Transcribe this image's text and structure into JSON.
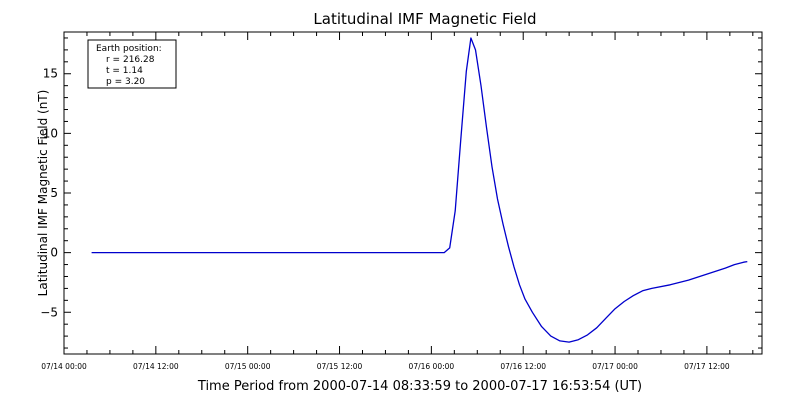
{
  "chart_data": {
    "type": "line",
    "title": "Latitudinal IMF Magnetic Field",
    "xlabel": "Time Period from 2000-07-14 08:33:59 to 2000-07-17 16:53:54 (UT)",
    "ylabel": "Latitudinal IMF Magnetic Field (nT)",
    "x_unit": "days since 07/14 00:00",
    "xlim": [
      0,
      3.8
    ],
    "ylim": [
      -8.5,
      18.5
    ],
    "x_ticks": [
      {
        "value": 0,
        "label": "07/14 00:00"
      },
      {
        "value": 0.5,
        "label": "07/14 12:00"
      },
      {
        "value": 1,
        "label": "07/15 00:00"
      },
      {
        "value": 1.5,
        "label": "07/15 12:00"
      },
      {
        "value": 2,
        "label": "07/16 00:00"
      },
      {
        "value": 2.5,
        "label": "07/16 12:00"
      },
      {
        "value": 3,
        "label": "07/17 00:00"
      },
      {
        "value": 3.5,
        "label": "07/17 12:00"
      }
    ],
    "y_ticks": [
      {
        "value": -5,
        "label": "−5"
      },
      {
        "value": 0,
        "label": "0"
      },
      {
        "value": 5,
        "label": "5"
      },
      {
        "value": 10,
        "label": "10"
      },
      {
        "value": 15,
        "label": "15"
      }
    ],
    "legend_box": {
      "lines": [
        "Earth position:",
        "r = 216.28",
        "t = 1.14",
        "p = 3.20"
      ],
      "placement": "top-left"
    },
    "series": [
      {
        "color": "#0000cc",
        "points": [
          [
            0.15,
            0.0
          ],
          [
            0.5,
            0.0
          ],
          [
            1.0,
            0.0
          ],
          [
            1.5,
            0.0
          ],
          [
            2.0,
            0.0
          ],
          [
            2.07,
            0.0
          ],
          [
            2.1,
            0.4
          ],
          [
            2.13,
            3.5
          ],
          [
            2.16,
            9.5
          ],
          [
            2.19,
            15.2
          ],
          [
            2.215,
            18.0
          ],
          [
            2.24,
            17.0
          ],
          [
            2.27,
            14.0
          ],
          [
            2.3,
            10.5
          ],
          [
            2.33,
            7.2
          ],
          [
            2.36,
            4.5
          ],
          [
            2.39,
            2.4
          ],
          [
            2.42,
            0.5
          ],
          [
            2.45,
            -1.2
          ],
          [
            2.48,
            -2.7
          ],
          [
            2.51,
            -3.9
          ],
          [
            2.55,
            -5.0
          ],
          [
            2.6,
            -6.2
          ],
          [
            2.65,
            -7.0
          ],
          [
            2.7,
            -7.4
          ],
          [
            2.75,
            -7.5
          ],
          [
            2.8,
            -7.3
          ],
          [
            2.85,
            -6.9
          ],
          [
            2.9,
            -6.3
          ],
          [
            2.95,
            -5.5
          ],
          [
            3.0,
            -4.7
          ],
          [
            3.05,
            -4.1
          ],
          [
            3.1,
            -3.6
          ],
          [
            3.15,
            -3.2
          ],
          [
            3.2,
            -3.0
          ],
          [
            3.3,
            -2.7
          ],
          [
            3.4,
            -2.3
          ],
          [
            3.5,
            -1.8
          ],
          [
            3.6,
            -1.3
          ],
          [
            3.65,
            -1.0
          ],
          [
            3.7,
            -0.8
          ],
          [
            3.72,
            -0.75
          ]
        ]
      }
    ]
  }
}
